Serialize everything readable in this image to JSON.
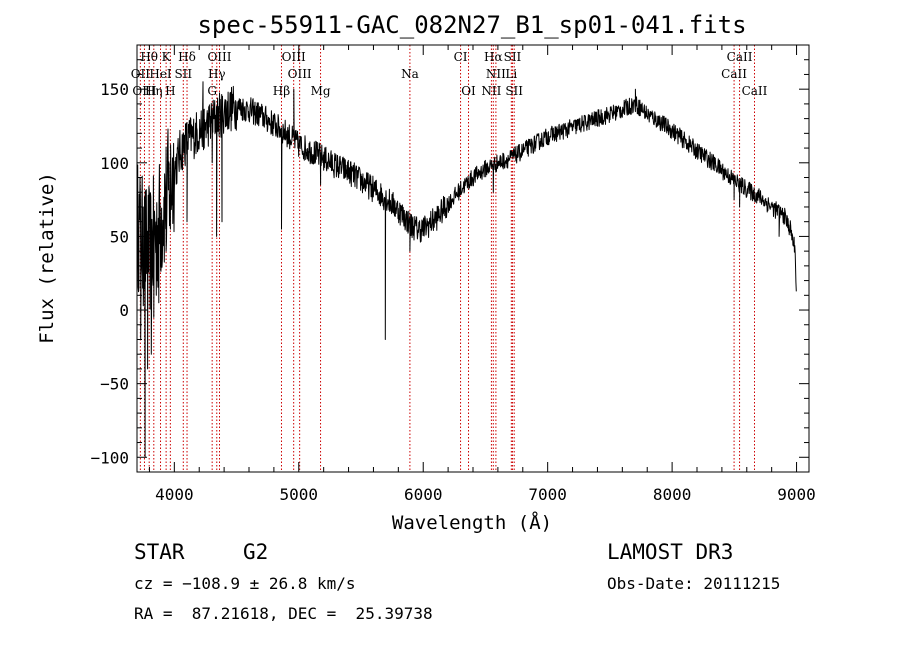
{
  "chart_data": {
    "type": "line",
    "title": "spec-55911-GAC_082N27_B1_sp01-041.fits",
    "xlabel": "Wavelength (Å)",
    "ylabel": "Flux (relative)",
    "xlim": [
      3700,
      9100
    ],
    "ylim": [
      -110,
      180
    ],
    "xticks": [
      4000,
      5000,
      6000,
      7000,
      8000,
      9000
    ],
    "yticks": [
      -100,
      -50,
      0,
      50,
      100,
      150
    ],
    "grid": false,
    "spectral_lines": [
      {
        "label": "Hθ",
        "wavelength": 3798,
        "row": 0
      },
      {
        "label": "K",
        "wavelength": 3934,
        "row": 0
      },
      {
        "label": "Hδ",
        "wavelength": 4102,
        "row": 0
      },
      {
        "label": "OIII",
        "wavelength": 4363,
        "row": 0
      },
      {
        "label": "OIII",
        "wavelength": 4959,
        "row": 0
      },
      {
        "label": "CI",
        "wavelength": 6300,
        "row": 0
      },
      {
        "label": "Hα",
        "wavelength": 6563,
        "row": 0
      },
      {
        "label": "SII",
        "wavelength": 6717,
        "row": 0
      },
      {
        "label": "CaII",
        "wavelength": 8542,
        "row": 0
      },
      {
        "label": "OII",
        "wavelength": 3727,
        "row": 1
      },
      {
        "label": "HeI",
        "wavelength": 3889,
        "row": 1
      },
      {
        "label": "SII",
        "wavelength": 4072,
        "row": 1
      },
      {
        "label": "Hγ",
        "wavelength": 4341,
        "row": 1
      },
      {
        "label": "OIII",
        "wavelength": 5007,
        "row": 1
      },
      {
        "label": "Na",
        "wavelength": 5893,
        "row": 1
      },
      {
        "label": "NII",
        "wavelength": 6584,
        "row": 1
      },
      {
        "label": "Li",
        "wavelength": 6708,
        "row": 1
      },
      {
        "label": "CaII",
        "wavelength": 8498,
        "row": 1
      },
      {
        "label": "OIII",
        "wavelength": 3760,
        "row": 2
      },
      {
        "label": "Hη",
        "wavelength": 3835,
        "row": 2
      },
      {
        "label": "H",
        "wavelength": 3968,
        "row": 2
      },
      {
        "label": "G",
        "wavelength": 4304,
        "row": 2
      },
      {
        "label": "Hβ",
        "wavelength": 4861,
        "row": 2
      },
      {
        "label": "Mg",
        "wavelength": 5175,
        "row": 2
      },
      {
        "label": "OI",
        "wavelength": 6364,
        "row": 2
      },
      {
        "label": "NII",
        "wavelength": 6548,
        "row": 2
      },
      {
        "label": "SII",
        "wavelength": 6731,
        "row": 2
      },
      {
        "label": "CaII",
        "wavelength": 8662,
        "row": 2
      }
    ],
    "continuum": [
      [
        3700,
        60
      ],
      [
        3750,
        45
      ],
      [
        3800,
        40
      ],
      [
        3850,
        50
      ],
      [
        3900,
        65
      ],
      [
        3950,
        80
      ],
      [
        4000,
        95
      ],
      [
        4050,
        108
      ],
      [
        4100,
        115
      ],
      [
        4150,
        118
      ],
      [
        4200,
        122
      ],
      [
        4300,
        128
      ],
      [
        4400,
        135
      ],
      [
        4500,
        138
      ],
      [
        4600,
        136
      ],
      [
        4700,
        132
      ],
      [
        4800,
        126
      ],
      [
        4900,
        120
      ],
      [
        5000,
        112
      ],
      [
        5100,
        108
      ],
      [
        5200,
        103
      ],
      [
        5300,
        98
      ],
      [
        5400,
        94
      ],
      [
        5500,
        88
      ],
      [
        5600,
        82
      ],
      [
        5700,
        76
      ],
      [
        5800,
        68
      ],
      [
        5900,
        58
      ],
      [
        5950,
        55
      ],
      [
        6000,
        55
      ],
      [
        6100,
        62
      ],
      [
        6200,
        72
      ],
      [
        6300,
        82
      ],
      [
        6400,
        90
      ],
      [
        6500,
        96
      ],
      [
        6600,
        100
      ],
      [
        6700,
        103
      ],
      [
        6800,
        108
      ],
      [
        6900,
        113
      ],
      [
        7000,
        118
      ],
      [
        7100,
        121
      ],
      [
        7200,
        124
      ],
      [
        7300,
        127
      ],
      [
        7400,
        130
      ],
      [
        7500,
        133
      ],
      [
        7600,
        136
      ],
      [
        7700,
        140
      ],
      [
        7750,
        137
      ],
      [
        7800,
        133
      ],
      [
        7900,
        128
      ],
      [
        8000,
        122
      ],
      [
        8100,
        115
      ],
      [
        8200,
        108
      ],
      [
        8300,
        102
      ],
      [
        8400,
        95
      ],
      [
        8500,
        88
      ],
      [
        8600,
        82
      ],
      [
        8700,
        77
      ],
      [
        8800,
        70
      ],
      [
        8900,
        64
      ],
      [
        8950,
        55
      ],
      [
        8990,
        40
      ],
      [
        9000,
        3
      ]
    ],
    "features": [
      {
        "wavelength": 3715,
        "flux": 55
      },
      {
        "wavelength": 3730,
        "flux": -20
      },
      {
        "wavelength": 3750,
        "flux": 70
      },
      {
        "wavelength": 3765,
        "flux": -100
      },
      {
        "wavelength": 3785,
        "flux": -40
      },
      {
        "wavelength": 3800,
        "flux": 60
      },
      {
        "wavelength": 3815,
        "flux": -30
      },
      {
        "wavelength": 3835,
        "flux": -5
      },
      {
        "wavelength": 3855,
        "flux": 10
      },
      {
        "wavelength": 3875,
        "flux": 5
      },
      {
        "wavelength": 3889,
        "flux": 30
      },
      {
        "wavelength": 3934,
        "flux": 40
      },
      {
        "wavelength": 3968,
        "flux": 55
      },
      {
        "wavelength": 4102,
        "flux": 60
      },
      {
        "wavelength": 4230,
        "flux": 155
      },
      {
        "wavelength": 4240,
        "flux": 110
      },
      {
        "wavelength": 4304,
        "flux": 100
      },
      {
        "wavelength": 4340,
        "flux": 50
      },
      {
        "wavelength": 4383,
        "flux": 60
      },
      {
        "wavelength": 4861,
        "flux": 55
      },
      {
        "wavelength": 4960,
        "flux": 150
      },
      {
        "wavelength": 5175,
        "flux": 85
      },
      {
        "wavelength": 5695,
        "flux": -20
      },
      {
        "wavelength": 5893,
        "flux": 40
      },
      {
        "wavelength": 6563,
        "flux": 80
      },
      {
        "wavelength": 7705,
        "flux": 150
      },
      {
        "wavelength": 8498,
        "flux": 75
      },
      {
        "wavelength": 8542,
        "flux": 70
      },
      {
        "wavelength": 8662,
        "flux": 75
      },
      {
        "wavelength": 8860,
        "flux": 50
      }
    ]
  },
  "info": {
    "object_type": "STAR",
    "spectral_class": "G2",
    "survey": "LAMOST DR3",
    "redshift": "cz = −108.9 ± 26.8 km/s",
    "obs_date": "Obs-Date: 20111215",
    "coords": "RA =  87.21618, DEC =  25.39738"
  },
  "colors": {
    "line_marker": "#cc0000",
    "spectrum": "#000000",
    "axes": "#000000"
  }
}
